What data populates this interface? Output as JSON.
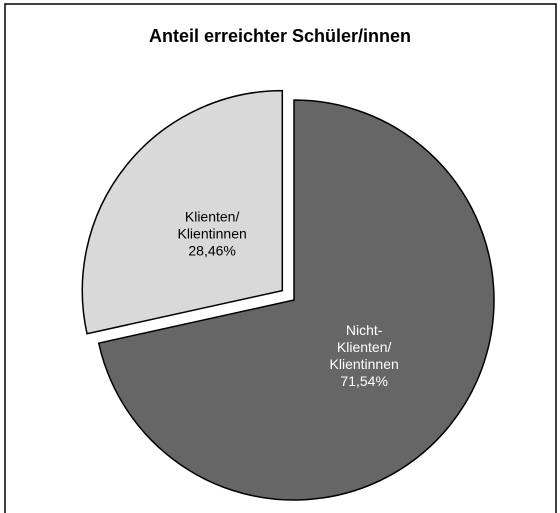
{
  "chart_data": {
    "type": "pie",
    "title": "Anteil erreichter Schüler/innen",
    "categories": [
      "Klienten/\nKlientinnen",
      "Nicht-\nKlienten/\nKlientinnen"
    ],
    "values": [
      28.46,
      71.54
    ],
    "value_labels": [
      "28,46%",
      "71,54%"
    ],
    "colors": [
      "#d9d9d9",
      "#666666"
    ],
    "label_colors": [
      "#000000",
      "#ffffff"
    ],
    "explode": [
      0.075,
      0
    ]
  }
}
